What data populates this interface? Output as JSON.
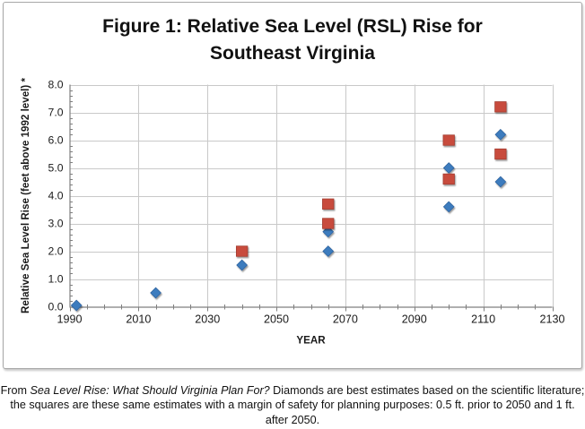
{
  "figure": {
    "title_line1": "Figure 1: Relative Sea Level (RSL) Rise for",
    "title_line2": "Southeast Virginia"
  },
  "caption": {
    "prefix": "From ",
    "source_italic": "Sea Level Rise: What Should Virginia Plan For?",
    "rest": "  Diamonds are best estimates based on the scientific literature; the squares are these same estimates with a margin of safety for planning purposes: 0.5 ft. prior to 2050 and 1 ft. after 2050."
  },
  "chart_data": {
    "type": "scatter",
    "title": "Figure 1: Relative Sea Level (RSL) Rise for Southeast Virginia",
    "xlabel": "YEAR",
    "ylabel": "Relative Sea Level Rise (feet above 1992 level) *",
    "xlim": [
      1990,
      2130
    ],
    "ylim": [
      0.0,
      8.0
    ],
    "x_ticks": [
      1990,
      2010,
      2030,
      2050,
      2070,
      2090,
      2110,
      2130
    ],
    "y_ticks": [
      0.0,
      1.0,
      2.0,
      3.0,
      4.0,
      5.0,
      6.0,
      7.0,
      8.0
    ],
    "x_minor_step": 5,
    "y_minor_step": 0.2,
    "grid": true,
    "legend": "none",
    "series": [
      {
        "name": "Diamonds - best estimates (scientific literature)",
        "marker": "diamond",
        "color": "#3E7CBE",
        "edge_color": "#2E64A0",
        "points": [
          [
            1992,
            0.05
          ],
          [
            2015,
            0.5
          ],
          [
            2040,
            1.5
          ],
          [
            2065,
            2.0
          ],
          [
            2065,
            2.7
          ],
          [
            2100,
            3.6
          ],
          [
            2100,
            5.0
          ],
          [
            2115,
            4.5
          ],
          [
            2115,
            6.2
          ]
        ]
      },
      {
        "name": "Squares - estimates with margin of safety (0.5 ft. prior to 2050, 1 ft. after 2050)",
        "marker": "square",
        "color": "#C84C3E",
        "edge_color": "#A33D30",
        "points": [
          [
            2040,
            2.0
          ],
          [
            2065,
            3.0
          ],
          [
            2065,
            3.7
          ],
          [
            2100,
            4.6
          ],
          [
            2100,
            6.0
          ],
          [
            2115,
            5.5
          ],
          [
            2115,
            7.2
          ]
        ]
      }
    ],
    "style": {
      "gridline_color": "#c9c9c9",
      "axis_color": "#7f7f7f",
      "tick_label_color": "#1a1a1a",
      "background": "#ffffff"
    }
  }
}
